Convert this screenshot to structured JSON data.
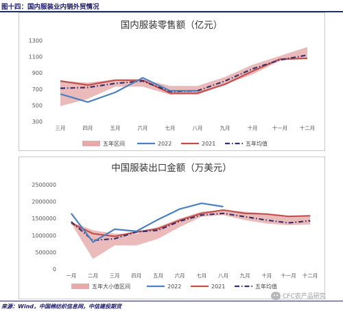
{
  "figure_title": "图十四：国内服装业内销外贸情况",
  "source": "来源：Wind，中国棉纺织信息网，中信建投期货",
  "watermark": "CFC农产品研究",
  "colors": {
    "band": "#e6aaaa",
    "y2022": "#4a7fc1",
    "y2021": "#c0504d",
    "avg": "#3b2f63"
  },
  "chart_data": [
    {
      "type": "line",
      "title": "国内服装零售额（亿元）",
      "categories": [
        "三月",
        "四月",
        "五月",
        "六月",
        "七月",
        "八月",
        "九月",
        "十月",
        "十一月",
        "十二月"
      ],
      "ylim": [
        300,
        1300
      ],
      "yticks": [
        300,
        500,
        700,
        900,
        1100,
        1300
      ],
      "grid": false,
      "legend_position": "bottom",
      "band": {
        "name": "五年区间",
        "low": [
          490,
          580,
          730,
          730,
          630,
          630,
          760,
          880,
          1050,
          1080
        ],
        "high": [
          800,
          780,
          820,
          820,
          740,
          740,
          850,
          1000,
          1110,
          1220
        ]
      },
      "series": [
        {
          "name": "2022",
          "style": "solid",
          "values": [
            640,
            540,
            660,
            840,
            680,
            680,
            null,
            null,
            null,
            null
          ]
        },
        {
          "name": "2021",
          "style": "solid",
          "values": [
            800,
            750,
            810,
            810,
            650,
            650,
            760,
            920,
            1070,
            1080
          ]
        },
        {
          "name": "五年均值",
          "style": "dashdot",
          "values": [
            710,
            720,
            770,
            800,
            670,
            680,
            800,
            950,
            1060,
            1120
          ]
        }
      ]
    },
    {
      "type": "line",
      "title": "中国服装出口金额（万美元）",
      "categories": [
        "一月",
        "二月",
        "三月",
        "四月",
        "五月",
        "六月",
        "七月",
        "八月",
        "九月",
        "十月",
        "十一月",
        "十二月"
      ],
      "ylim": [
        0,
        2500000
      ],
      "yticks": [
        0,
        500000,
        1000000,
        1500000,
        2000000,
        2500000
      ],
      "grid": false,
      "legend_position": "bottom",
      "band": {
        "name": "五年大小值区间",
        "low": [
          1350000,
          300000,
          700000,
          700000,
          900000,
          1250000,
          1550000,
          1600000,
          1450000,
          1350000,
          1300000,
          1320000
        ],
        "high": [
          1400000,
          1150000,
          1050000,
          1050000,
          1250000,
          1500000,
          1700000,
          1750000,
          1700000,
          1650000,
          1550000,
          1560000
        ]
      },
      "series": [
        {
          "name": "2022",
          "style": "solid",
          "values": [
            1650000,
            800000,
            1180000,
            1120000,
            1470000,
            1780000,
            1950000,
            1850000,
            null,
            null,
            null,
            null
          ]
        },
        {
          "name": "2021",
          "style": "solid",
          "values": [
            1360000,
            1050000,
            970000,
            1100000,
            1200000,
            1450000,
            1650000,
            1750000,
            1650000,
            1630000,
            1560000,
            1580000
          ]
        },
        {
          "name": "五年均值",
          "style": "dashdot",
          "values": [
            1400000,
            850000,
            900000,
            1100000,
            1150000,
            1420000,
            1600000,
            1650000,
            1550000,
            1450000,
            1370000,
            1430000
          ]
        }
      ]
    }
  ]
}
